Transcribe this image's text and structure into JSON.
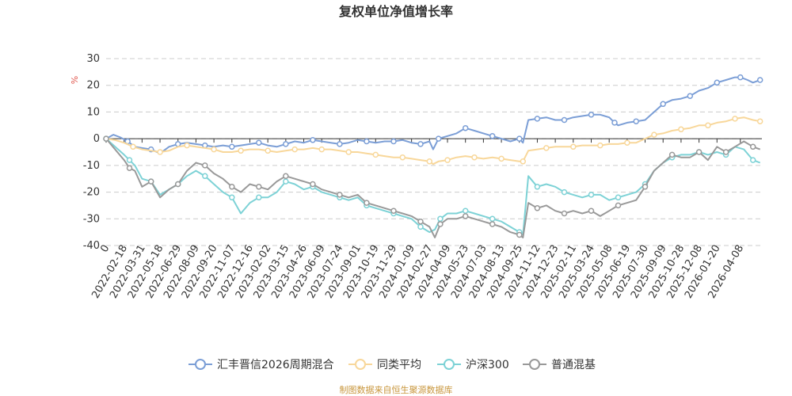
{
  "chart_data": {
    "type": "line",
    "title": "复权单位净值增长率",
    "ylabel": "%",
    "ylim": [
      -40,
      30
    ],
    "yticks": [
      30,
      20,
      10,
      0,
      -10,
      -20,
      -30,
      -40
    ],
    "x_tick_labels": [
      "0",
      "2022-02-18",
      "2022-03-31",
      "2022-05-18",
      "2022-06-29",
      "2022-08-09",
      "2022-09-20",
      "2022-11-07",
      "2022-12-16",
      "2023-02-02",
      "2023-03-15",
      "2023-04-26",
      "2023-06-09",
      "2023-07-24",
      "2023-09-01",
      "2023-10-19",
      "2023-11-29",
      "2024-01-09",
      "2024-02-27",
      "2024-04-09",
      "2024-05-23",
      "2024-07-03",
      "2024-08-13",
      "2024-09-25",
      "2024-11-12",
      "2024-12-23",
      "2025-02-11",
      "2025-03-24",
      "2025-05-08",
      "2025-06-19",
      "2025-07-30",
      "2025-09-09",
      "2025-10-28",
      "2025-12-08",
      "2026-01-20",
      "2026-04-08"
    ],
    "x_tick_positions": [
      0,
      1,
      2,
      3,
      4,
      5,
      6,
      7,
      8,
      9,
      10,
      11,
      12,
      13,
      14,
      15,
      16,
      17,
      18,
      19,
      20,
      21,
      22,
      23,
      24,
      25,
      26,
      27,
      28,
      29,
      30,
      31,
      32,
      33,
      34,
      35.3
    ],
    "x_range": [
      0,
      36.5
    ],
    "series": [
      {
        "name": "汇丰晋信2026周期混合",
        "color": "#7b9ed6",
        "x": [
          0,
          0.4,
          0.8,
          1.2,
          1.6,
          2,
          2.5,
          3,
          3.5,
          4,
          4.5,
          5,
          5.5,
          6,
          6.5,
          7,
          7.5,
          8,
          8.5,
          9,
          9.5,
          10,
          10.5,
          11,
          11.5,
          12,
          12.5,
          13,
          13.5,
          14,
          14.5,
          15,
          15.5,
          16,
          16.5,
          17,
          17.5,
          18,
          18.2,
          18.5,
          19,
          19.5,
          20,
          20.5,
          21,
          21.5,
          22,
          22.5,
          23,
          23.2,
          23.5,
          24,
          24.5,
          25,
          25.5,
          26,
          26.5,
          27,
          27.5,
          28,
          28.3,
          28.5,
          29,
          29.5,
          30,
          30.5,
          31,
          31.5,
          32,
          32.5,
          33,
          33.5,
          34,
          34.5,
          35,
          35.3,
          35.7,
          36,
          36.4
        ],
        "values": [
          0,
          1.5,
          0.5,
          -1,
          -3,
          -3.5,
          -4,
          -5.5,
          -3,
          -2,
          -1.5,
          -2,
          -2.5,
          -3,
          -2.5,
          -3,
          -2.5,
          -2,
          -1.5,
          -2.5,
          -3,
          -2,
          -1,
          -1.5,
          -0.5,
          -1,
          -1.5,
          -2,
          -1.5,
          -0.5,
          -1,
          -1.5,
          -1,
          -1,
          -0.5,
          -1.5,
          -2,
          -1,
          -4,
          0,
          1,
          2,
          4,
          3,
          2,
          1,
          0,
          -1,
          0,
          -1.5,
          7,
          7.5,
          8,
          7,
          7,
          8,
          8.5,
          9,
          9,
          8,
          6,
          5,
          6,
          6.5,
          7,
          10,
          13,
          14.5,
          15,
          16,
          18,
          19,
          21,
          22,
          23,
          23,
          22,
          21,
          22
        ]
      },
      {
        "name": "同类平均",
        "color": "#f8d79a",
        "x": [
          0,
          0.5,
          1,
          1.5,
          2,
          2.5,
          3,
          3.5,
          4,
          4.5,
          5,
          5.5,
          6,
          6.5,
          7,
          7.5,
          8,
          8.5,
          9,
          9.5,
          10,
          10.5,
          11,
          11.5,
          12,
          12.5,
          13,
          13.5,
          14,
          14.5,
          15,
          15.5,
          16,
          16.5,
          17,
          17.5,
          18,
          18.2,
          18.5,
          19,
          19.5,
          20,
          20.5,
          21,
          21.5,
          22,
          22.5,
          23,
          23.2,
          23.5,
          24,
          24.5,
          25,
          25.5,
          26,
          26.5,
          27,
          27.5,
          28,
          28.5,
          29,
          29.5,
          30,
          30.5,
          31,
          31.5,
          32,
          32.5,
          33,
          33.5,
          34,
          34.5,
          35,
          35.5,
          36,
          36.4
        ],
        "values": [
          0,
          -0.5,
          -1.5,
          -3,
          -4,
          -4.5,
          -5,
          -4.5,
          -3,
          -2.5,
          -3,
          -3.5,
          -4,
          -5,
          -5,
          -4.5,
          -4,
          -4,
          -4.5,
          -5,
          -4.5,
          -4,
          -4,
          -3.5,
          -4,
          -4,
          -4.5,
          -5,
          -5,
          -5.5,
          -6,
          -6.5,
          -7,
          -7,
          -7.5,
          -8,
          -8.5,
          -9.5,
          -8.5,
          -8,
          -7,
          -6.5,
          -7,
          -7.5,
          -7,
          -7.5,
          -8,
          -8.5,
          -8.5,
          -4.5,
          -4,
          -3.5,
          -3,
          -3,
          -3,
          -2.5,
          -2.5,
          -2.5,
          -2,
          -2,
          -1.5,
          -1.5,
          0,
          1.5,
          2,
          3,
          3.5,
          4,
          5,
          5,
          6,
          6.5,
          7.5,
          8,
          7,
          6.5
        ]
      },
      {
        "name": "沪深300",
        "color": "#7dd2d6",
        "x": [
          0,
          0.5,
          1,
          1.3,
          1.6,
          2,
          2.5,
          3,
          3.5,
          4,
          4.5,
          5,
          5.5,
          6,
          6.5,
          7,
          7.5,
          8,
          8.5,
          9,
          9.5,
          10,
          10.5,
          11,
          11.5,
          12,
          12.5,
          13,
          13.5,
          14,
          14.5,
          15,
          15.5,
          16,
          16.5,
          17,
          17.5,
          18,
          18.3,
          18.6,
          19,
          19.5,
          20,
          20.5,
          21,
          21.5,
          22,
          22.5,
          23,
          23.2,
          23.5,
          24,
          24.5,
          25,
          25.5,
          26,
          26.5,
          27,
          27.5,
          28,
          28.5,
          29,
          29.5,
          30,
          30.5,
          31,
          31.5,
          32,
          32.5,
          33,
          33.5,
          34,
          34.5,
          35,
          35.5,
          36,
          36.4
        ],
        "values": [
          0,
          -3,
          -6,
          -8,
          -10,
          -15,
          -16,
          -21,
          -19,
          -17,
          -14,
          -12,
          -14,
          -17,
          -20,
          -22,
          -28,
          -24,
          -22,
          -22,
          -20,
          -16,
          -17,
          -19,
          -18,
          -20,
          -21,
          -22,
          -23,
          -22,
          -25,
          -26,
          -27,
          -28,
          -29,
          -30,
          -33,
          -35,
          -34,
          -30,
          -28,
          -28,
          -27,
          -28,
          -29,
          -30,
          -31,
          -33,
          -35,
          -36,
          -14,
          -18,
          -17,
          -18,
          -20,
          -21,
          -22,
          -21,
          -21,
          -23,
          -22,
          -21,
          -20,
          -17,
          -12,
          -9,
          -7,
          -6,
          -6,
          -5,
          -6,
          -5,
          -6,
          -3,
          -4,
          -8,
          -9
        ]
      },
      {
        "name": "普通混基",
        "color": "#999999",
        "x": [
          0,
          0.5,
          1,
          1.3,
          1.6,
          2,
          2.5,
          3,
          3.5,
          4,
          4.5,
          5,
          5.5,
          6,
          6.5,
          7,
          7.5,
          8,
          8.5,
          9,
          9.5,
          10,
          10.5,
          11,
          11.5,
          12,
          12.5,
          13,
          13.5,
          14,
          14.5,
          15,
          15.5,
          16,
          16.5,
          17,
          17.5,
          18,
          18.3,
          18.6,
          19,
          19.5,
          20,
          20.5,
          21,
          21.5,
          22,
          22.5,
          23,
          23.2,
          23.5,
          24,
          24.5,
          25,
          25.5,
          26,
          26.5,
          27,
          27.5,
          28,
          28.5,
          29,
          29.5,
          30,
          30.5,
          31,
          31.5,
          32,
          32.5,
          33,
          33.5,
          34,
          34.5,
          35,
          35.5,
          36,
          36.4
        ],
        "values": [
          0,
          -4,
          -8,
          -11,
          -12,
          -18,
          -16,
          -22,
          -19,
          -17,
          -12,
          -9,
          -10,
          -13,
          -15,
          -18,
          -20,
          -17,
          -18,
          -19,
          -16,
          -14,
          -15,
          -16,
          -17,
          -19,
          -20,
          -21,
          -22,
          -21,
          -24,
          -25,
          -26,
          -27,
          -28,
          -29,
          -31,
          -33,
          -37,
          -32,
          -30,
          -30,
          -29,
          -30,
          -31,
          -32,
          -33,
          -35,
          -36,
          -37,
          -24,
          -26,
          -25,
          -27,
          -28,
          -27,
          -28,
          -27,
          -29,
          -27,
          -25,
          -24,
          -23,
          -18,
          -12,
          -9,
          -6,
          -7,
          -7,
          -5,
          -8,
          -3,
          -5,
          -3,
          -1,
          -3,
          -4
        ]
      }
    ]
  },
  "source_text": "制图数据来自恒生聚源数据库"
}
